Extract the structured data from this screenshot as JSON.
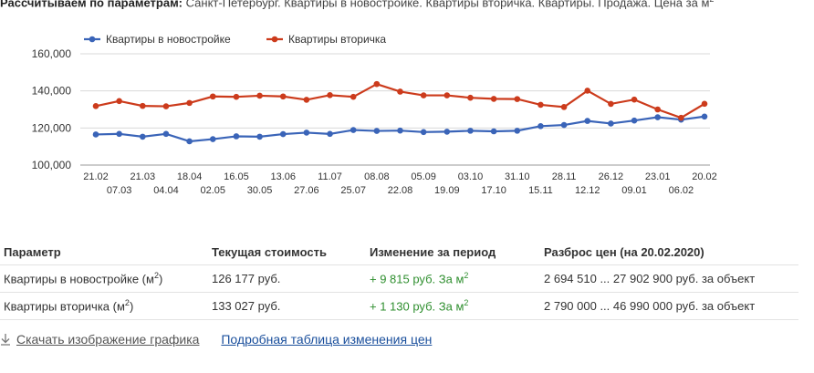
{
  "header": {
    "params_label": "Рассчитываем по параметрам:",
    "params_value": " Санкт-Петербург. Квартиры в новостройке. Квартиры вторичка. Квартиры. Продажа. Цена за м",
    "params_unit_sup": "2"
  },
  "chart_data": {
    "type": "line",
    "title": "",
    "xlabel": "",
    "ylabel": "",
    "ylim": [
      100000,
      160000
    ],
    "yticks": [
      100000,
      120000,
      140000,
      160000
    ],
    "ytick_labels": [
      "100,000",
      "120,000",
      "140,000",
      "160,000"
    ],
    "grid": true,
    "legend_position": "top-left",
    "x": [
      "21.02",
      "07.03",
      "21.03",
      "04.04",
      "18.04",
      "02.05",
      "16.05",
      "30.05",
      "13.06",
      "27.06",
      "11.07",
      "25.07",
      "08.08",
      "22.08",
      "05.09",
      "19.09",
      "03.10",
      "17.10",
      "31.10",
      "15.11",
      "28.11",
      "12.12",
      "26.12",
      "09.01",
      "23.01",
      "06.02",
      "20.02"
    ],
    "series": [
      {
        "name": "Квартиры в новостройке",
        "color": "#3a64b8",
        "values": [
          116500,
          116800,
          115300,
          116800,
          112800,
          114000,
          115500,
          115300,
          116700,
          117500,
          116800,
          118900,
          118400,
          118600,
          117800,
          118000,
          118500,
          118200,
          118500,
          121000,
          121600,
          123800,
          122400,
          124000,
          125800,
          124500,
          126177
        ]
      },
      {
        "name": "Квартиры вторичка",
        "color": "#cc3b1c",
        "values": [
          131800,
          134500,
          131900,
          131700,
          133500,
          137000,
          136800,
          137400,
          137000,
          135200,
          137700,
          136800,
          143700,
          139600,
          137600,
          137600,
          136300,
          135700,
          135600,
          132500,
          131300,
          140100,
          133000,
          135300,
          130000,
          125500,
          133027
        ]
      }
    ]
  },
  "table": {
    "headers": [
      "Параметр",
      "Текущая стоимость",
      "Изменение за период",
      "Разброс цен (на 20.02.2020)"
    ],
    "rows": [
      {
        "param": "Квартиры в новостройке (м",
        "param_sup": "2",
        "param_close": ")",
        "price": "126 177 руб.",
        "change": "+ 9 815 руб. За м",
        "change_sup": "2",
        "range": "2 694 510 ... 27 902 900 руб. за объект"
      },
      {
        "param": "Квартиры вторичка (м",
        "param_sup": "2",
        "param_close": ")",
        "price": "133 027 руб.",
        "change": "+ 1 130 руб. За м",
        "change_sup": "2",
        "range": "2 790 000 ... 46 990 000 руб. за объект"
      }
    ]
  },
  "links": {
    "download": "Скачать изображение графика",
    "details": "Подробная таблица изменения цен"
  }
}
